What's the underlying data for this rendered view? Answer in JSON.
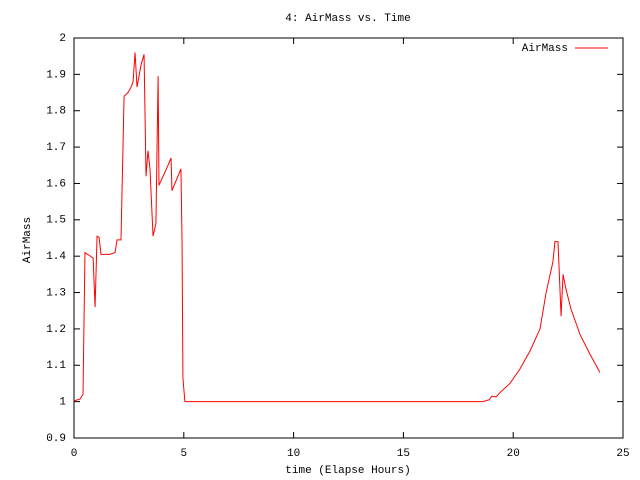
{
  "chart_data": {
    "type": "line",
    "title": "4: AirMass vs. Time",
    "x_label": "time (Elapse Hours)",
    "y_label": "AirMass",
    "x": [
      0,
      0.27,
      0.41,
      0.5,
      0.87,
      0.96,
      1.05,
      1.14,
      1.23,
      1.64,
      1.87,
      1.96,
      2.14,
      2.28,
      2.46,
      2.6,
      2.69,
      2.78,
      2.87,
      3.05,
      3.19,
      3.28,
      3.37,
      3.46,
      3.6,
      3.73,
      3.83,
      3.87,
      4.28,
      4.42,
      4.46,
      4.87,
      4.92,
      4.96,
      5.05,
      18.62,
      18.9,
      19.03,
      19.22,
      19.4,
      19.85,
      20.31,
      20.77,
      21.22,
      21.5,
      21.81,
      21.9,
      22.04,
      22.18,
      22.27,
      22.4,
      22.63,
      23.04,
      23.5,
      23.82,
      23.95
    ],
    "series": [
      {
        "name": "AirMass",
        "color": "#ff0000",
        "values": [
          1.002,
          1.007,
          1.02,
          1.41,
          1.395,
          1.26,
          1.455,
          1.452,
          1.405,
          1.405,
          1.41,
          1.445,
          1.445,
          1.84,
          1.85,
          1.865,
          1.88,
          1.96,
          1.865,
          1.925,
          1.955,
          1.62,
          1.69,
          1.64,
          1.455,
          1.49,
          1.895,
          1.595,
          1.65,
          1.67,
          1.58,
          1.64,
          1.44,
          1.065,
          1,
          1,
          1.005,
          1.015,
          1.013,
          1.025,
          1.05,
          1.09,
          1.14,
          1.2,
          1.3,
          1.385,
          1.44,
          1.44,
          1.235,
          1.35,
          1.31,
          1.255,
          1.185,
          1.13,
          1.095,
          1.08
        ]
      }
    ],
    "xlim": [
      0,
      25
    ],
    "ylim": [
      0.9,
      2
    ],
    "xticks": [
      0,
      5,
      10,
      15,
      20,
      25
    ],
    "yticks": [
      0.9,
      1,
      1.1,
      1.2,
      1.3,
      1.4,
      1.5,
      1.6,
      1.7,
      1.8,
      1.9,
      2
    ],
    "legend": "upper right",
    "grid": false
  }
}
